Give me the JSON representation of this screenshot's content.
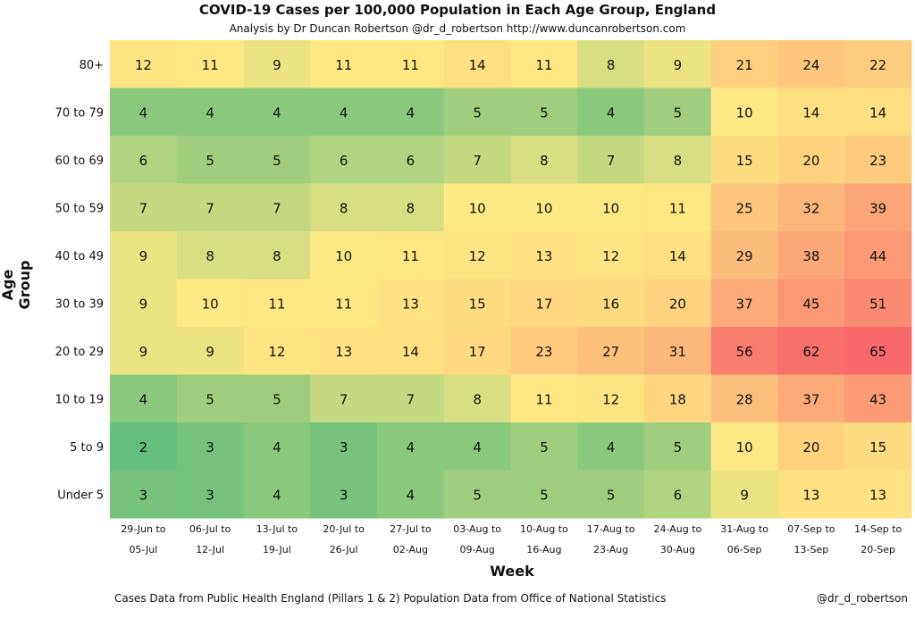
{
  "chart_data": {
    "type": "heatmap",
    "title": "COVID-19 Cases per 100,000 Population in Each Age Group, England",
    "subtitle": "Analysis by Dr Duncan Robertson @dr_d_robertson http://www.duncanrobertson.com",
    "xlabel": "Week",
    "ylabel": "Age Group",
    "x": [
      [
        "29-Jun to",
        "05-Jul"
      ],
      [
        "06-Jul to",
        "12-Jul"
      ],
      [
        "13-Jul to",
        "19-Jul"
      ],
      [
        "20-Jul to",
        "26-Jul"
      ],
      [
        "27-Jul to",
        "02-Aug"
      ],
      [
        "03-Aug to",
        "09-Aug"
      ],
      [
        "10-Aug to",
        "16-Aug"
      ],
      [
        "17-Aug to",
        "23-Aug"
      ],
      [
        "24-Aug to",
        "30-Aug"
      ],
      [
        "31-Aug to",
        "06-Sep"
      ],
      [
        "07-Sep to",
        "13-Sep"
      ],
      [
        "14-Sep to",
        "20-Sep"
      ]
    ],
    "y": [
      "80+",
      "70 to 79",
      "60 to 69",
      "50 to 59",
      "40 to 49",
      "30 to 39",
      "20 to 29",
      "10 to 19",
      "5 to 9",
      "Under 5"
    ],
    "values": [
      [
        12,
        11,
        9,
        11,
        11,
        14,
        11,
        8,
        9,
        21,
        24,
        22
      ],
      [
        4,
        4,
        4,
        4,
        4,
        5,
        5,
        4,
        5,
        10,
        14,
        14
      ],
      [
        6,
        5,
        5,
        6,
        6,
        7,
        8,
        7,
        8,
        15,
        20,
        23
      ],
      [
        7,
        7,
        7,
        8,
        8,
        10,
        10,
        10,
        11,
        25,
        32,
        39
      ],
      [
        9,
        8,
        8,
        10,
        11,
        12,
        13,
        12,
        14,
        29,
        38,
        44
      ],
      [
        9,
        10,
        11,
        11,
        13,
        15,
        17,
        16,
        20,
        37,
        45,
        51
      ],
      [
        9,
        9,
        12,
        13,
        14,
        17,
        23,
        27,
        31,
        56,
        62,
        65
      ],
      [
        4,
        5,
        5,
        7,
        7,
        8,
        11,
        12,
        18,
        28,
        37,
        43
      ],
      [
        2,
        3,
        4,
        3,
        4,
        4,
        5,
        4,
        5,
        10,
        20,
        15
      ],
      [
        3,
        3,
        4,
        3,
        4,
        5,
        5,
        5,
        6,
        9,
        13,
        13
      ]
    ],
    "legend": "none"
  },
  "footer": {
    "left": "Cases Data from Public Health England (Pillars 1 & 2) Population Data from Office of National Statistics",
    "right": "@dr_d_robertson"
  },
  "colors": {
    "green": "#63be7b",
    "yellow": "#ffe984",
    "red": "#f8696b"
  }
}
